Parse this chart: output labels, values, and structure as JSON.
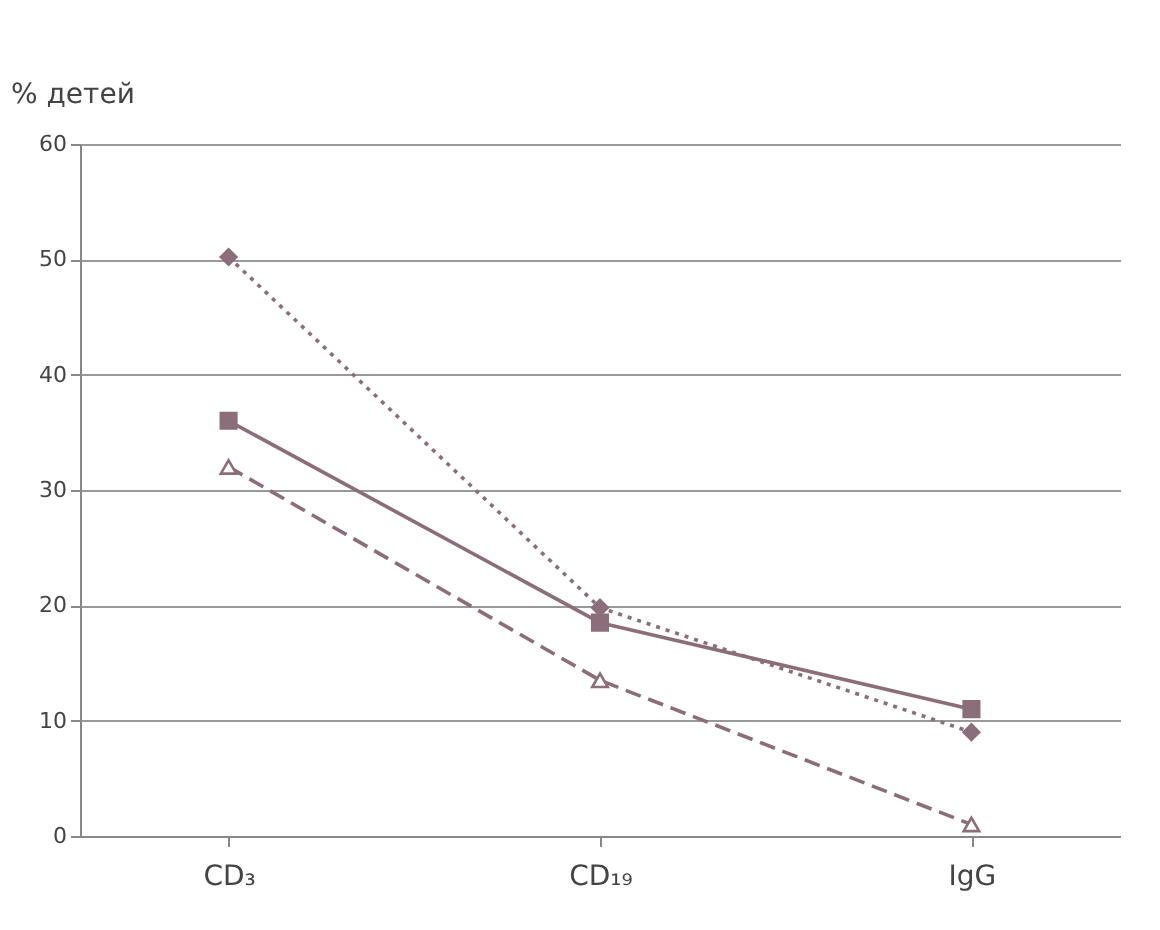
{
  "chart_data": {
    "type": "line",
    "ylabel": "% детей",
    "categories": [
      "CD₃",
      "CD₁₉",
      "IgG"
    ],
    "series": [
      {
        "color": "#8c6e7a",
        "values": [
          50.2,
          19.8,
          9
        ],
        "marker": "diamond",
        "line_style": "dotted"
      },
      {
        "color": "#8c6e7a",
        "values": [
          36,
          18.5,
          11
        ],
        "marker": "square",
        "line_style": "solid"
      },
      {
        "color": "#8c6e7a",
        "values": [
          32,
          13.5,
          1
        ],
        "marker": "triangle",
        "line_style": "dashed"
      }
    ],
    "ylim": [
      0,
      60
    ],
    "yticks": [
      0,
      10,
      20,
      30,
      40,
      50,
      60
    ],
    "grid": "y",
    "legend": false
  }
}
